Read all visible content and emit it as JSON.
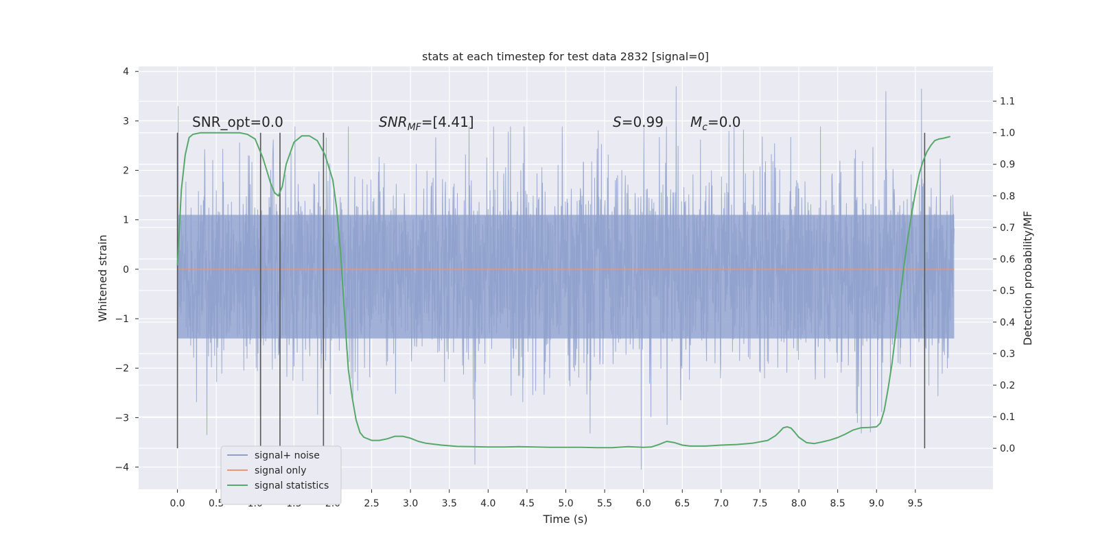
{
  "chart_data": {
    "type": "line",
    "title": "stats at each timestep for test data 2832 [signal=0]",
    "xlabel": "Time (s)",
    "ylabel_left": "Whitened strain",
    "ylabel_right": "Detection probability/MF",
    "xlim": [
      -0.5,
      10.5
    ],
    "ylim_left": [
      -4.45,
      4.1
    ],
    "ylim_right": [
      -0.13,
      1.21
    ],
    "x_ticks": [
      "0.0",
      "0.5",
      "1.0",
      "1.5",
      "2.0",
      "2.5",
      "3.0",
      "3.5",
      "4.0",
      "4.5",
      "5.0",
      "5.5",
      "6.0",
      "6.5",
      "7.0",
      "7.5",
      "8.0",
      "8.5",
      "9.0",
      "9.5"
    ],
    "y_ticks_left": [
      "−4",
      "−3",
      "−2",
      "−1",
      "0",
      "1",
      "2",
      "3",
      "4"
    ],
    "y_ticks_right": [
      "0.0",
      "0.1",
      "0.2",
      "0.3",
      "0.4",
      "0.5",
      "0.6",
      "0.7",
      "0.8",
      "0.9",
      "1.0",
      "1.1"
    ],
    "grid": true,
    "legend_position": "lower-left",
    "annotations": {
      "snr_opt": "SNR_opt=0.0",
      "snr_mf_prefix": "SNR",
      "snr_mf_sub": "MF",
      "snr_mf_value": "=[4.41]",
      "s_symbol": "S",
      "s_value": "=0.99",
      "mc_symbol": "M",
      "mc_sub": "c",
      "mc_value": "=0.0"
    },
    "vertical_markers": [
      0.0,
      1.07,
      1.32,
      1.88,
      9.62
    ],
    "series": [
      {
        "name": "signal+ noise",
        "axis": "left",
        "color": "#8da0cb",
        "duration": 10.0,
        "core_band": [
          -1.4,
          1.1
        ],
        "spike_envelope": {
          "max": 3.7,
          "min": -4.05
        },
        "notable_peaks": [
          {
            "x": 0.01,
            "y": 3.3
          },
          {
            "x": 0.38,
            "y": -3.35
          },
          {
            "x": 3.83,
            "y": -3.95
          },
          {
            "x": 5.97,
            "y": -4.05
          },
          {
            "x": 6.42,
            "y": 3.7
          },
          {
            "x": 9.58,
            "y": 3.65
          },
          {
            "x": 9.12,
            "y": 3.6
          },
          {
            "x": 8.92,
            "y": -3.3
          }
        ]
      },
      {
        "name": "signal only",
        "axis": "left",
        "color": "#e8967a",
        "x": [
          0.0,
          10.0
        ],
        "y": [
          0.0,
          0.0
        ]
      },
      {
        "name": "signal statistics",
        "axis": "right",
        "color": "#55a868",
        "x": [
          0.0,
          0.05,
          0.1,
          0.15,
          0.2,
          0.3,
          0.4,
          0.5,
          0.6,
          0.7,
          0.8,
          0.9,
          1.0,
          1.1,
          1.2,
          1.25,
          1.3,
          1.35,
          1.4,
          1.5,
          1.6,
          1.7,
          1.8,
          1.9,
          2.0,
          2.05,
          2.1,
          2.15,
          2.2,
          2.25,
          2.3,
          2.35,
          2.4,
          2.5,
          2.6,
          2.7,
          2.8,
          2.9,
          3.0,
          3.1,
          3.2,
          3.4,
          3.6,
          3.8,
          4.0,
          4.2,
          4.4,
          4.6,
          4.8,
          5.0,
          5.2,
          5.4,
          5.6,
          5.8,
          6.0,
          6.1,
          6.2,
          6.3,
          6.4,
          6.5,
          6.6,
          6.8,
          7.0,
          7.2,
          7.4,
          7.6,
          7.7,
          7.75,
          7.8,
          7.85,
          7.9,
          7.95,
          8.0,
          8.1,
          8.2,
          8.3,
          8.4,
          8.5,
          8.6,
          8.7,
          8.8,
          8.9,
          9.0,
          9.05,
          9.1,
          9.15,
          9.2,
          9.25,
          9.3,
          9.35,
          9.4,
          9.45,
          9.5,
          9.55,
          9.6,
          9.65,
          9.7,
          9.75,
          9.8,
          9.85,
          9.9,
          9.95
        ],
        "y": [
          0.58,
          0.82,
          0.93,
          0.985,
          0.995,
          1.0,
          1.0,
          1.0,
          1.0,
          1.0,
          1.0,
          0.995,
          0.98,
          0.92,
          0.84,
          0.81,
          0.8,
          0.83,
          0.9,
          0.97,
          0.99,
          0.99,
          0.975,
          0.93,
          0.85,
          0.76,
          0.62,
          0.43,
          0.25,
          0.16,
          0.09,
          0.05,
          0.035,
          0.025,
          0.025,
          0.03,
          0.038,
          0.038,
          0.032,
          0.022,
          0.016,
          0.01,
          0.006,
          0.005,
          0.004,
          0.004,
          0.005,
          0.004,
          0.003,
          0.003,
          0.003,
          0.002,
          0.002,
          0.005,
          0.003,
          0.004,
          0.012,
          0.022,
          0.018,
          0.01,
          0.007,
          0.007,
          0.01,
          0.012,
          0.016,
          0.025,
          0.04,
          0.052,
          0.065,
          0.068,
          0.064,
          0.05,
          0.035,
          0.018,
          0.015,
          0.02,
          0.026,
          0.034,
          0.045,
          0.058,
          0.065,
          0.066,
          0.068,
          0.08,
          0.12,
          0.19,
          0.27,
          0.37,
          0.47,
          0.57,
          0.66,
          0.74,
          0.81,
          0.87,
          0.91,
          0.94,
          0.96,
          0.975,
          0.98,
          0.982,
          0.985,
          0.988
        ]
      }
    ]
  }
}
